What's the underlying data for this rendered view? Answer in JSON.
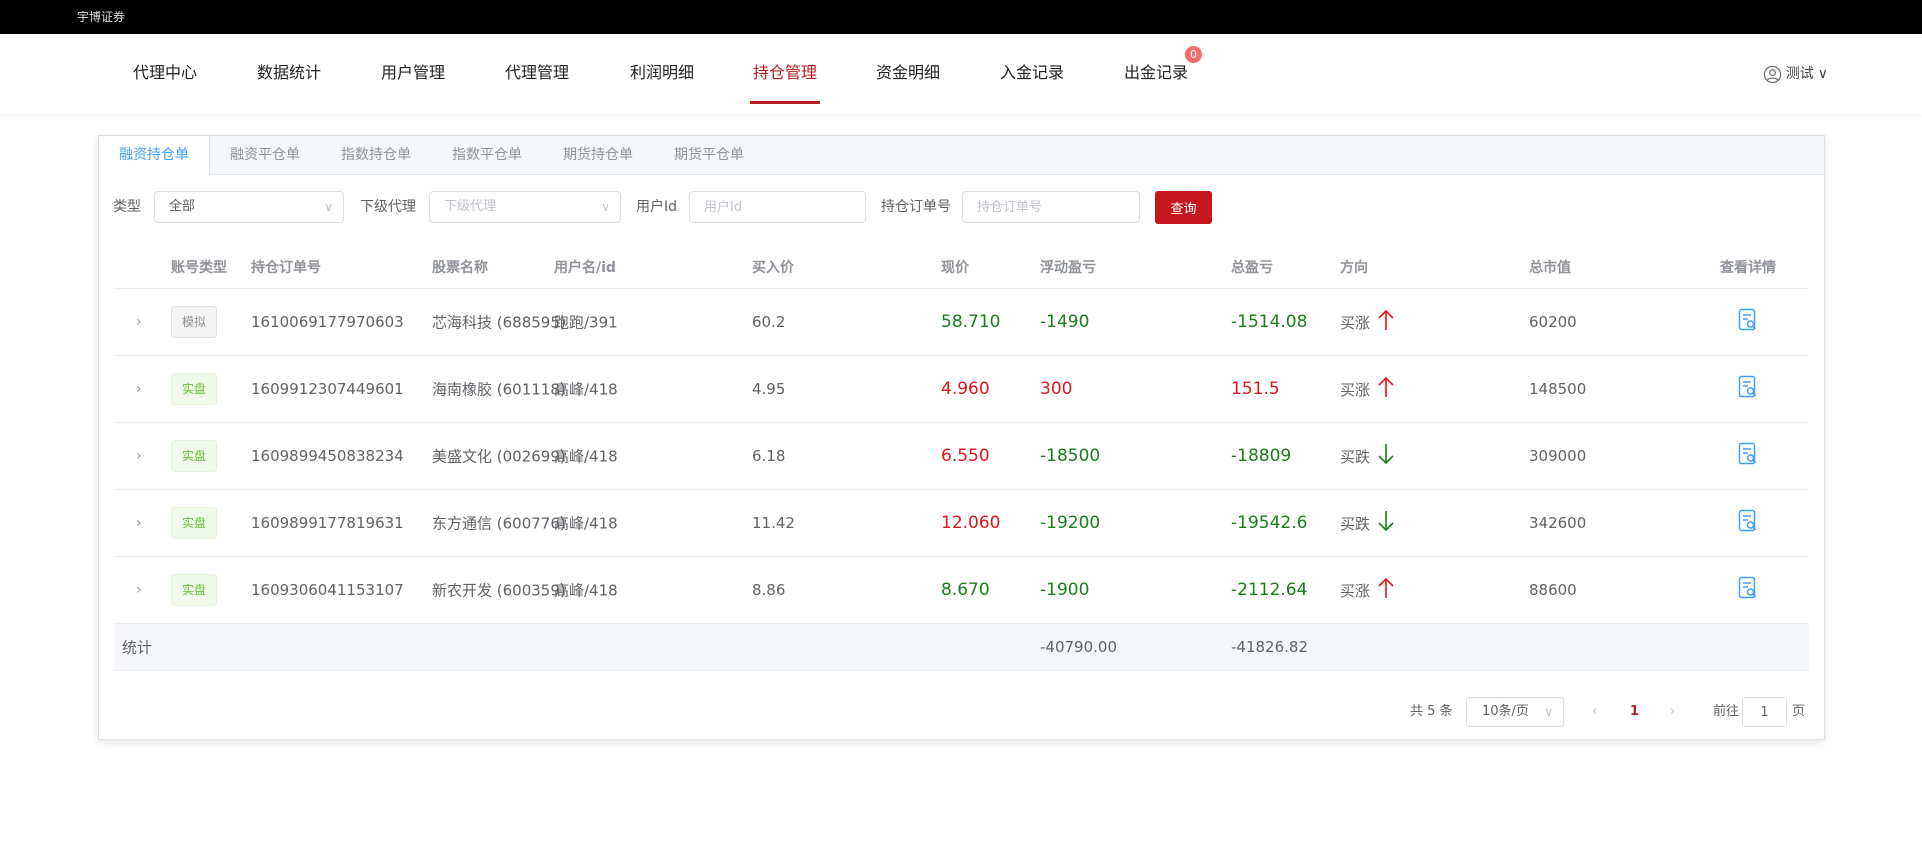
{
  "app": {
    "title": "宇博证券"
  },
  "nav": {
    "items": [
      {
        "label": "代理中心"
      },
      {
        "label": "数据统计"
      },
      {
        "label": "用户管理"
      },
      {
        "label": "代理管理"
      },
      {
        "label": "利润明细"
      },
      {
        "label": "持仓管理",
        "active": true
      },
      {
        "label": "资金明细"
      },
      {
        "label": "入金记录"
      },
      {
        "label": "出金记录",
        "badge": "0"
      }
    ],
    "user": "测试"
  },
  "tabs": [
    {
      "label": "融资持仓单",
      "active": true
    },
    {
      "label": "融资平仓单"
    },
    {
      "label": "指数持仓单"
    },
    {
      "label": "指数平仓单"
    },
    {
      "label": "期货持仓单"
    },
    {
      "label": "期货平仓单"
    }
  ],
  "filters": {
    "type_label": "类型",
    "type_value": "全部",
    "agent_label": "下级代理",
    "agent_placeholder": "下级代理",
    "uid_label": "用户Id",
    "uid_placeholder": "用户Id",
    "order_label": "持仓订单号",
    "order_placeholder": "持仓订单号",
    "query": "查询"
  },
  "table": {
    "headers": [
      "账号类型",
      "持仓订单号",
      "股票名称",
      "用户名/id",
      "买入价",
      "现价",
      "浮动盈亏",
      "总盈亏",
      "方向",
      "总市值",
      "查看详情"
    ],
    "rows": [
      {
        "type": "模拟",
        "kind": "sim",
        "order": "1610069177970603",
        "stock": "芯海科技 (688595)",
        "user": "跑跑/391",
        "buy": "60.2",
        "now": "58.710",
        "now_c": "green",
        "float": "-1490",
        "float_c": "green",
        "total": "-1514.08",
        "total_c": "green",
        "dir": "买涨",
        "arrow": "up",
        "mv": "60200"
      },
      {
        "type": "实盘",
        "kind": "real",
        "order": "1609912307449601",
        "stock": "海南橡胶 (601118)",
        "user": "高峰/418",
        "buy": "4.95",
        "now": "4.960",
        "now_c": "red",
        "float": "300",
        "float_c": "red",
        "total": "151.5",
        "total_c": "red",
        "dir": "买涨",
        "arrow": "up",
        "mv": "148500"
      },
      {
        "type": "实盘",
        "kind": "real",
        "order": "1609899450838234",
        "stock": "美盛文化 (002699)",
        "user": "高峰/418",
        "buy": "6.18",
        "now": "6.550",
        "now_c": "red",
        "float": "-18500",
        "float_c": "green",
        "total": "-18809",
        "total_c": "green",
        "dir": "买跌",
        "arrow": "down",
        "mv": "309000"
      },
      {
        "type": "实盘",
        "kind": "real",
        "order": "1609899177819631",
        "stock": "东方通信 (600776)",
        "user": "高峰/418",
        "buy": "11.42",
        "now": "12.060",
        "now_c": "red",
        "float": "-19200",
        "float_c": "green",
        "total": "-19542.6",
        "total_c": "green",
        "dir": "买跌",
        "arrow": "down",
        "mv": "342600"
      },
      {
        "type": "实盘",
        "kind": "real",
        "order": "1609306041153107",
        "stock": "新农开发 (600359)",
        "user": "高峰/418",
        "buy": "8.86",
        "now": "8.670",
        "now_c": "green",
        "float": "-1900",
        "float_c": "green",
        "total": "-2112.64",
        "total_c": "green",
        "dir": "买涨",
        "arrow": "up",
        "mv": "88600"
      }
    ],
    "summary": {
      "label": "统计",
      "float": "-40790.00",
      "total": "-41826.82"
    }
  },
  "pager": {
    "total": "共 5 条",
    "size": "10条/页",
    "current": "1",
    "goto": "前往",
    "goto_value": "1",
    "page_suffix": "页"
  },
  "colors": {
    "accent": "#b41e1e",
    "up": "#e0161c",
    "down": "#1a7f1a",
    "tab_active": "#409eff"
  }
}
